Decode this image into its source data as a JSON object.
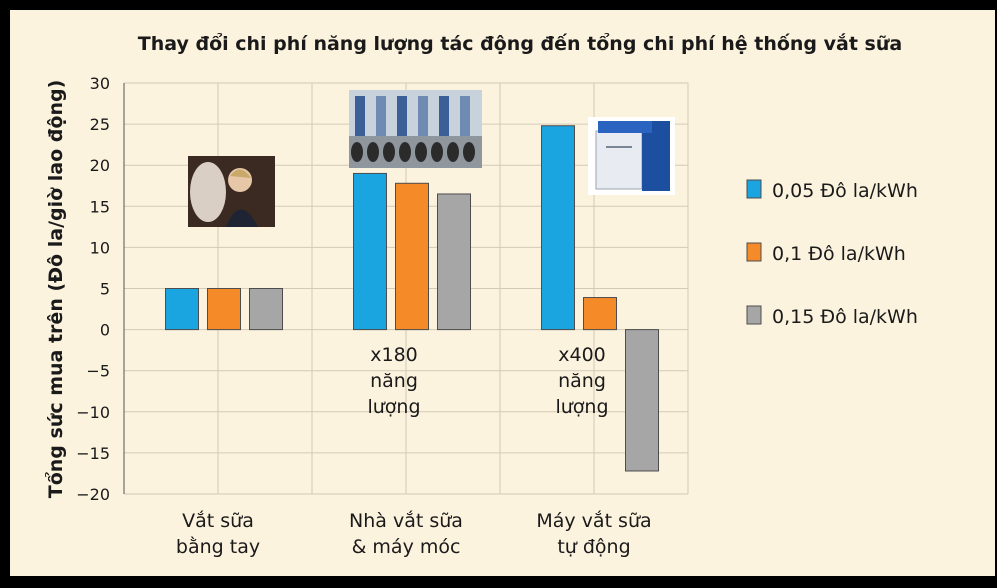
{
  "colors": {
    "background": "#fcf3df",
    "frame": "#000000",
    "grid": "#d2c9b6",
    "series": [
      "#1aa4e0",
      "#f58a28",
      "#a6a6a6"
    ]
  },
  "chart_data": {
    "type": "bar",
    "title": "Thay đổi chi phí năng lượng tác động đến tổng chi phí hệ thống vắt sữa",
    "ylabel": "Tổng sức mua trên (Đô la/giờ lao động)",
    "xlabel": "",
    "ylim": [
      -20,
      30
    ],
    "yticks": [
      "30",
      "25",
      "20",
      "15",
      "10",
      "5",
      "0",
      "−5",
      "−10",
      "−15",
      "−20"
    ],
    "grid": true,
    "legend_position": "right",
    "categories": [
      [
        "Vắt sữa",
        "bằng tay"
      ],
      [
        "Nhà vắt sữa",
        "& máy móc"
      ],
      [
        "Máy vắt sữa",
        "tự động"
      ]
    ],
    "series": [
      {
        "name": "0,05 Đô la/kWh",
        "values": [
          5.0,
          19.0,
          24.8
        ]
      },
      {
        "name": "0,1 Đô la/kWh",
        "values": [
          5.0,
          17.8,
          3.9
        ]
      },
      {
        "name": "0,15 Đô la/kWh",
        "values": [
          5.0,
          16.5,
          -17.2
        ]
      }
    ],
    "annotations": [
      {
        "category": 1,
        "lines": [
          "x180",
          "năng",
          "lượng"
        ]
      },
      {
        "category": 2,
        "lines": [
          "x400",
          "năng",
          "lượng"
        ]
      }
    ],
    "photos": [
      {
        "category": 0,
        "icon": "person-milking-cow-photo"
      },
      {
        "category": 1,
        "icon": "milking-parlor-photo"
      },
      {
        "category": 2,
        "icon": "robotic-milker-photo"
      }
    ]
  }
}
